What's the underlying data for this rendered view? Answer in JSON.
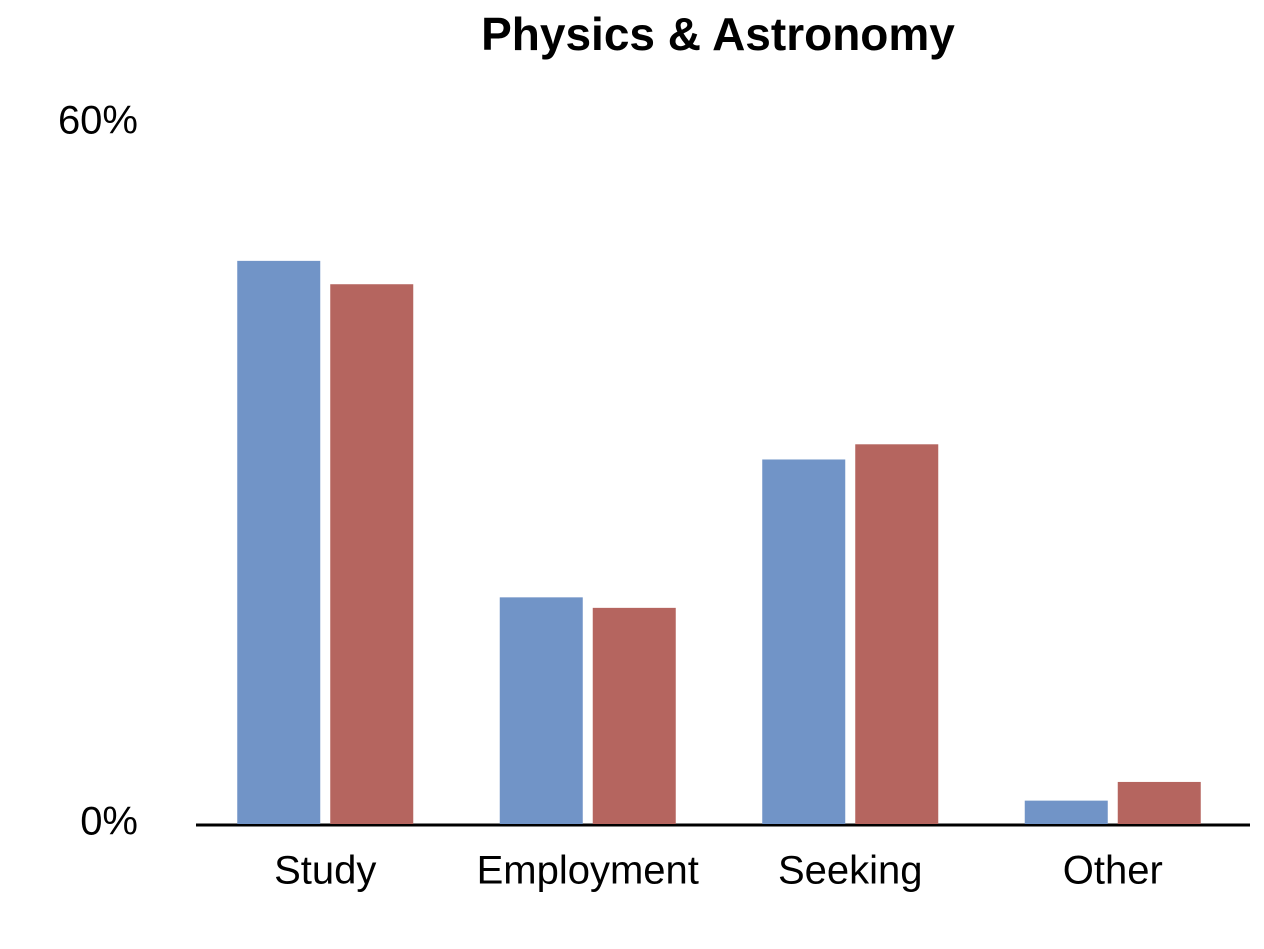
{
  "chart_data": {
    "type": "bar",
    "title": "Physics & Astronomy",
    "categories": [
      "Study",
      "Employment",
      "Seeking",
      "Other"
    ],
    "series": [
      {
        "color": "#7194c7",
        "values": [
          48.2,
          19.4,
          31.2,
          2.0
        ]
      },
      {
        "color": "#b5655f",
        "values": [
          46.2,
          18.5,
          32.5,
          3.6
        ]
      }
    ],
    "ylim": [
      0,
      60
    ],
    "yticks": [
      {
        "value": 0,
        "label": "0%"
      },
      {
        "value": 60,
        "label": "60%"
      }
    ]
  }
}
